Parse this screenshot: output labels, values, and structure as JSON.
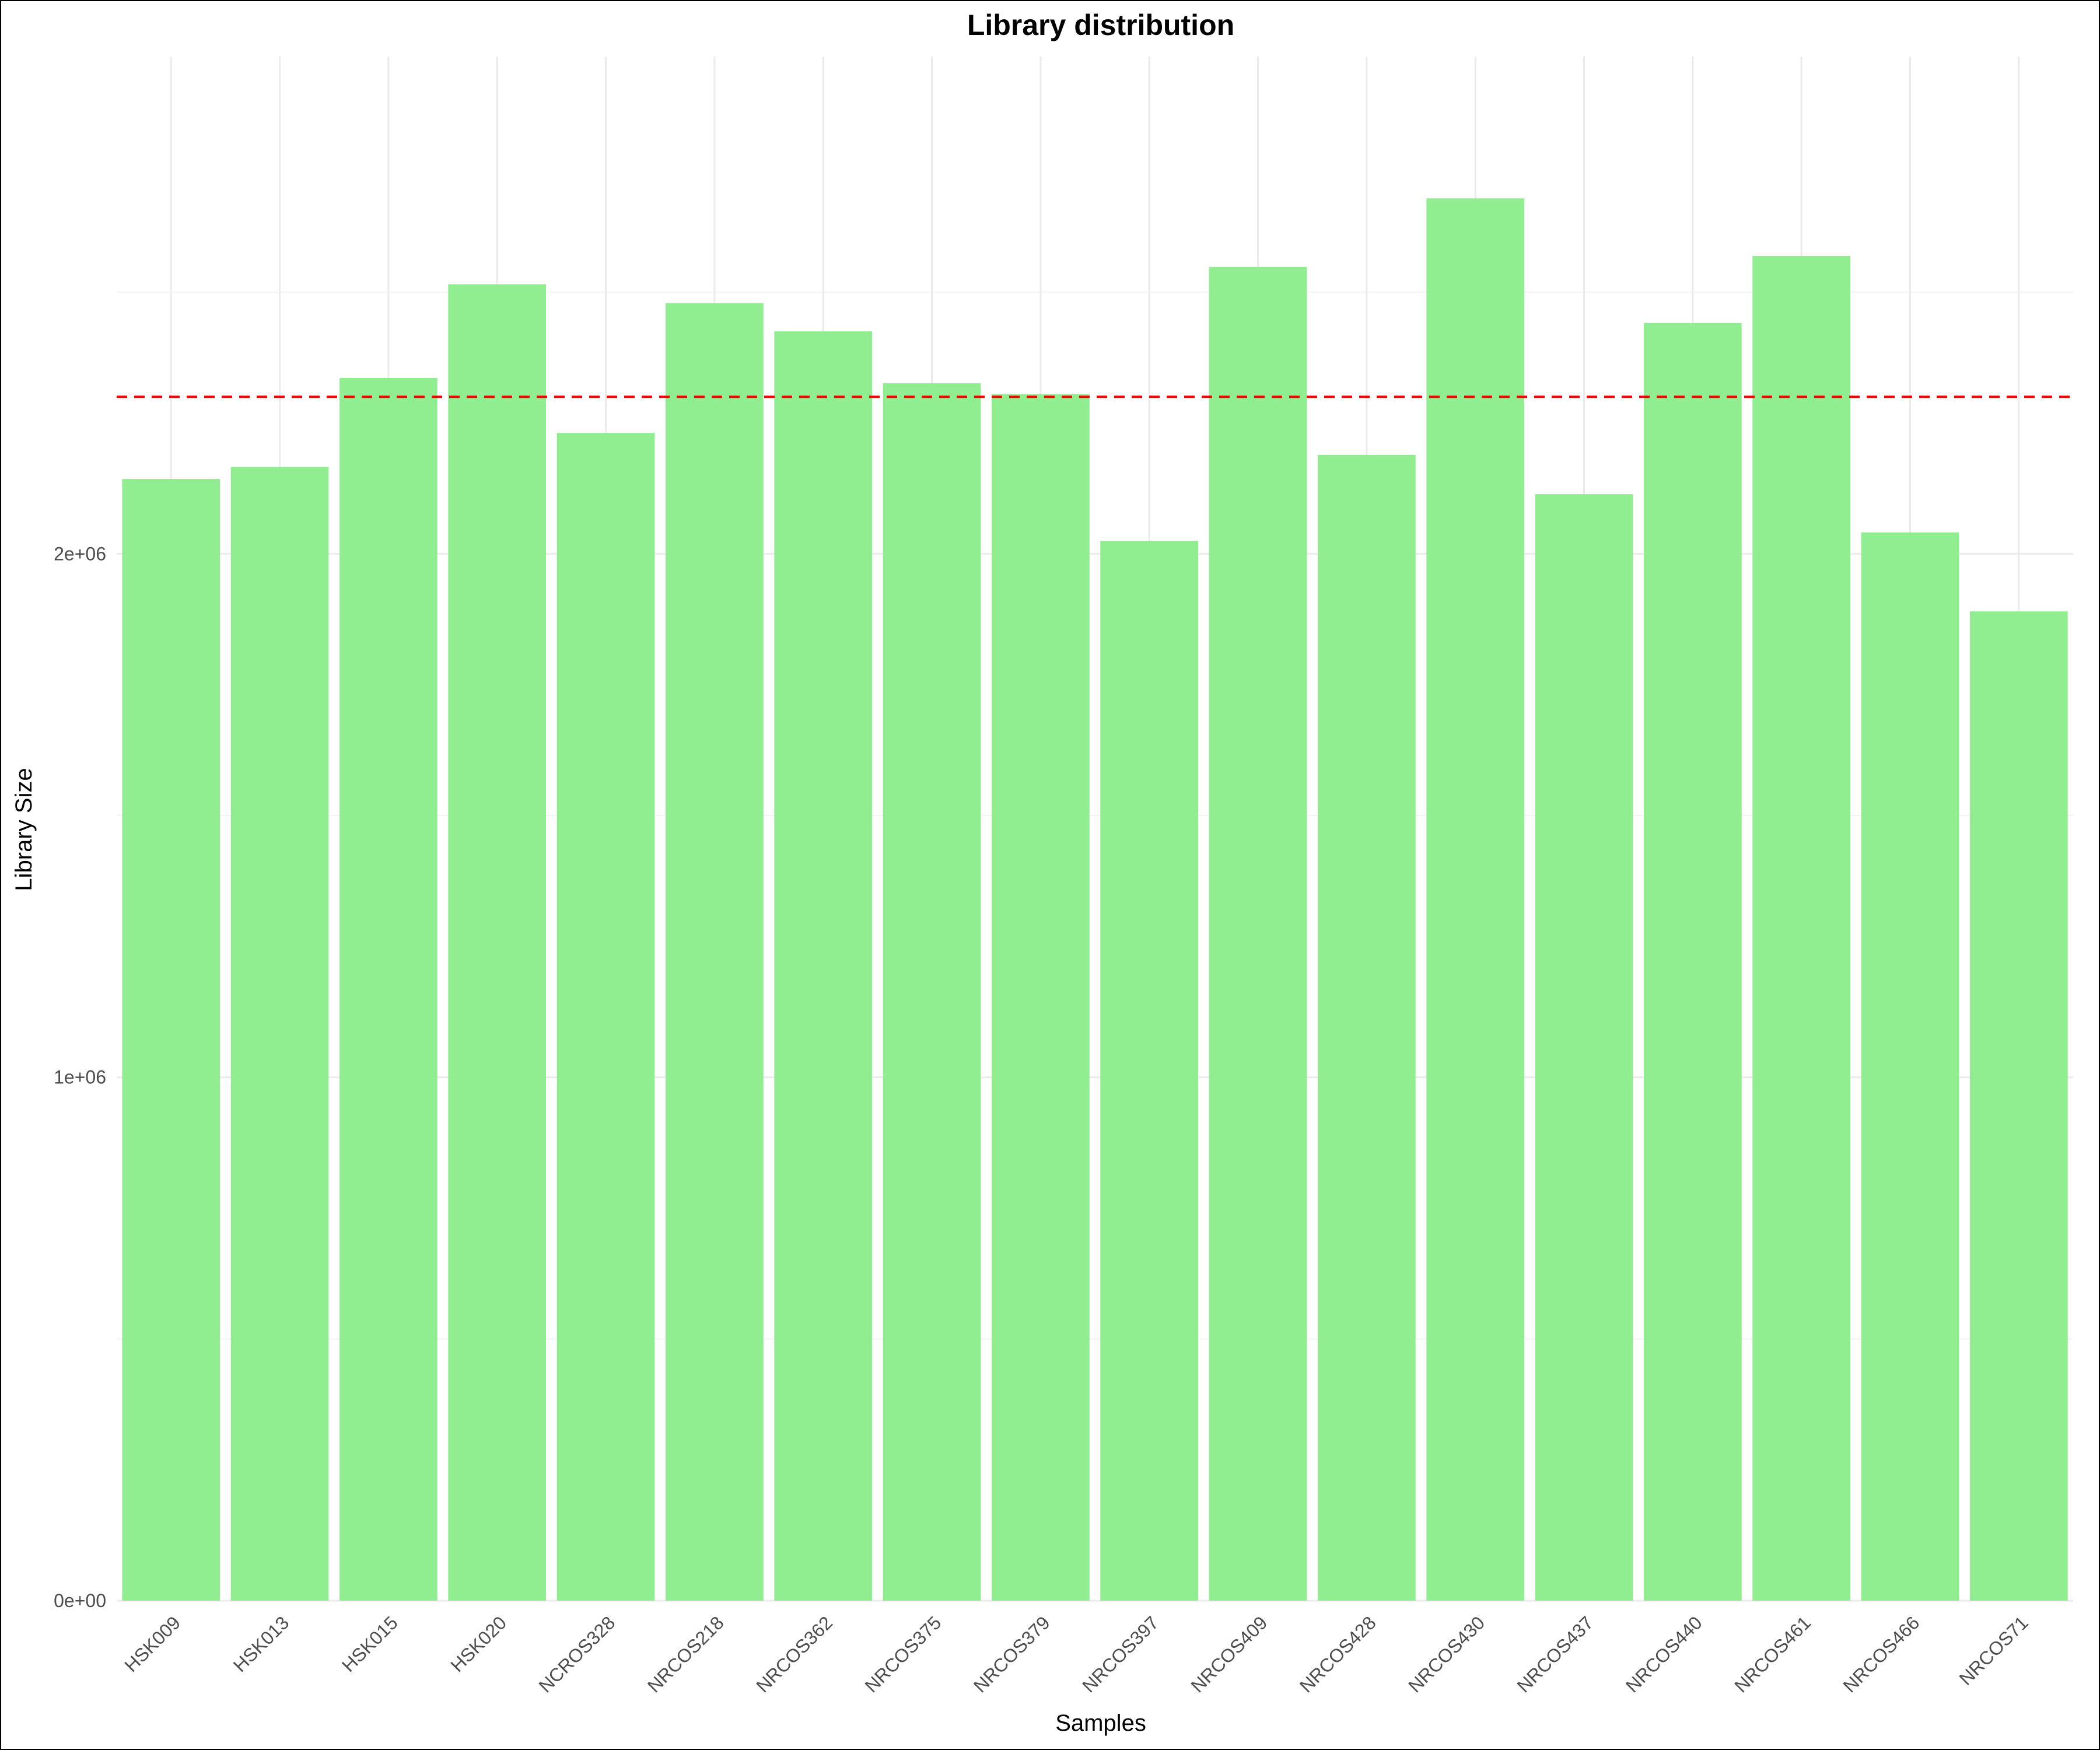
{
  "chart_data": {
    "type": "bar",
    "title": "Library distribution",
    "xlabel": "Samples",
    "ylabel": "Library Size",
    "categories": [
      "HSK009",
      "HSK013",
      "HSK015",
      "HSK020",
      "NCROS328",
      "NRCOS218",
      "NRCOS362",
      "NRCOS375",
      "NRCOS379",
      "NRCOS397",
      "NRCOS409",
      "NRCOS428",
      "NRCOS430",
      "NRCOS437",
      "NRCOS440",
      "NRCOS461",
      "NRCOS466",
      "NRCOS71"
    ],
    "values": [
      2143000,
      2166000,
      2336000,
      2515000,
      2231000,
      2479000,
      2425000,
      2326000,
      2305000,
      2025000,
      2548000,
      2189000,
      2679000,
      2114000,
      2441000,
      2569000,
      2041000,
      1890000
    ],
    "ylim": [
      0,
      2950000
    ],
    "yticks": [
      0,
      1000000,
      2000000
    ],
    "ytick_labels": [
      "0e+00",
      "1e+06",
      "2e+06"
    ],
    "bar_color": "#90ee90",
    "reference_line": {
      "value": 2300000,
      "color": "#ff0000",
      "style": "dashed"
    },
    "grid": true,
    "legend": "none"
  }
}
